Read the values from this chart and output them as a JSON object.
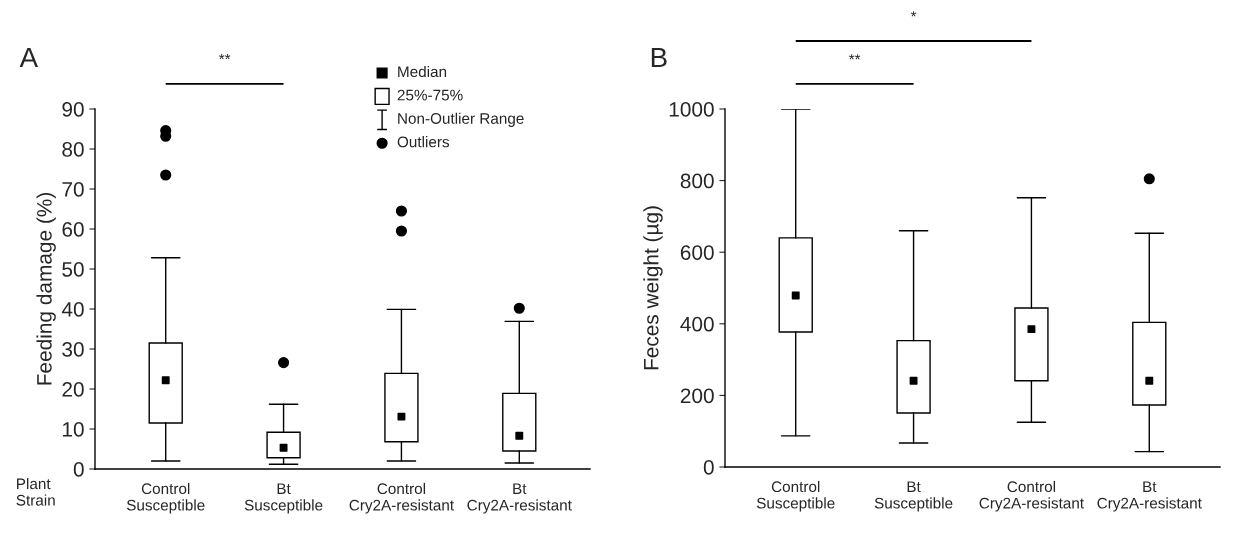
{
  "chart_data": [
    {
      "type": "box",
      "title": "A",
      "ylabel": "Feeding damage (%)",
      "xlabel": "Plant\nStrain",
      "categories": [
        "Control\nSusceptible",
        "Bt\nSusceptible",
        "Control\nCry2A-resistant",
        "Bt\nCry2A-resistant"
      ],
      "boxes": [
        {
          "low": 2,
          "q1": 11.5,
          "median": 22.2,
          "q3": 31.5,
          "high": 52.8,
          "outliers": [
            73.5,
            83.2,
            84.6
          ]
        },
        {
          "low": 1.2,
          "q1": 2.8,
          "median": 5.3,
          "q3": 9.2,
          "high": 16.2,
          "outliers": [
            26.6
          ]
        },
        {
          "low": 2,
          "q1": 6.8,
          "median": 13.1,
          "q3": 23.9,
          "high": 39.9,
          "outliers": [
            59.5,
            64.5
          ]
        },
        {
          "low": 1.5,
          "q1": 4.5,
          "median": 8.3,
          "q3": 18.9,
          "high": 36.9,
          "outliers": [
            40.2
          ]
        }
      ],
      "ylim": [
        0,
        90
      ],
      "yticks": [
        0,
        10,
        20,
        30,
        40,
        50,
        60,
        70,
        80,
        90
      ],
      "annotations": [
        "**",
        "Median",
        "25%-75%",
        "Non-Outlier Range",
        "Outliers"
      ],
      "grid": false
    },
    {
      "type": "box",
      "title": "B",
      "ylabel": "Feces weight (µg)",
      "categories": [
        "Control\nSusceptible",
        "Bt\nSusceptible",
        "Control\nCry2A-resistant",
        "Bt\nCry2A-resistant"
      ],
      "boxes": [
        {
          "low": 87,
          "q1": 377,
          "median": 479,
          "q3": 640,
          "high": 1000
        },
        {
          "low": 67,
          "q1": 151,
          "median": 241,
          "q3": 353,
          "high": 660
        },
        {
          "low": 125,
          "q1": 241,
          "median": 385,
          "q3": 444,
          "high": 752
        },
        {
          "low": 43,
          "q1": 173,
          "median": 241,
          "q3": 404,
          "high": 653,
          "outliers": [
            805
          ]
        }
      ],
      "ylim": [
        0,
        1000
      ],
      "yticks": [
        0,
        200,
        400,
        600,
        800,
        1000
      ],
      "annotations": [
        "**",
        "*"
      ],
      "grid": false
    }
  ]
}
